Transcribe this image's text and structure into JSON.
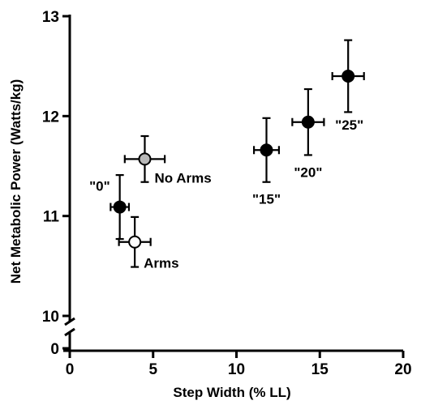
{
  "chart_data": {
    "type": "scatter",
    "title": "",
    "xlabel": "Step Width (% LL)",
    "ylabel": "Net Metabolic Power (Watts/kg)",
    "xlim": [
      0,
      20
    ],
    "ylim": [
      10,
      13
    ],
    "broken_y_axis": {
      "lower_tick": "0",
      "break_between": [
        0,
        10
      ]
    },
    "x_ticks": [
      "0",
      "5",
      "10",
      "15",
      "20"
    ],
    "y_ticks": [
      "10",
      "11",
      "12",
      "13"
    ],
    "grid": false,
    "points": [
      {
        "label": "\"0\"",
        "x": 3.0,
        "y": 11.09,
        "xerr": 0.55,
        "yerr": 0.32,
        "fill": "#000000",
        "label_position": "upper-left"
      },
      {
        "label": "No Arms",
        "x": 4.5,
        "y": 11.57,
        "xerr": 1.2,
        "yerr": 0.23,
        "fill": "#b8b8b8",
        "label_position": "lower-right"
      },
      {
        "label": "Arms",
        "x": 3.9,
        "y": 10.74,
        "xerr": 0.95,
        "yerr": 0.25,
        "fill": "#ffffff",
        "label_position": "lower-right"
      },
      {
        "label": "\"15\"",
        "x": 11.8,
        "y": 11.66,
        "xerr": 0.75,
        "yerr": 0.32,
        "fill": "#000000",
        "label_position": "below"
      },
      {
        "label": "\"20\"",
        "x": 14.3,
        "y": 11.94,
        "xerr": 0.95,
        "yerr": 0.33,
        "fill": "#000000",
        "label_position": "below"
      },
      {
        "label": "\"25\"",
        "x": 16.7,
        "y": 12.4,
        "xerr": 0.95,
        "yerr": 0.36,
        "fill": "#000000",
        "label_position": "lower-right"
      }
    ]
  }
}
